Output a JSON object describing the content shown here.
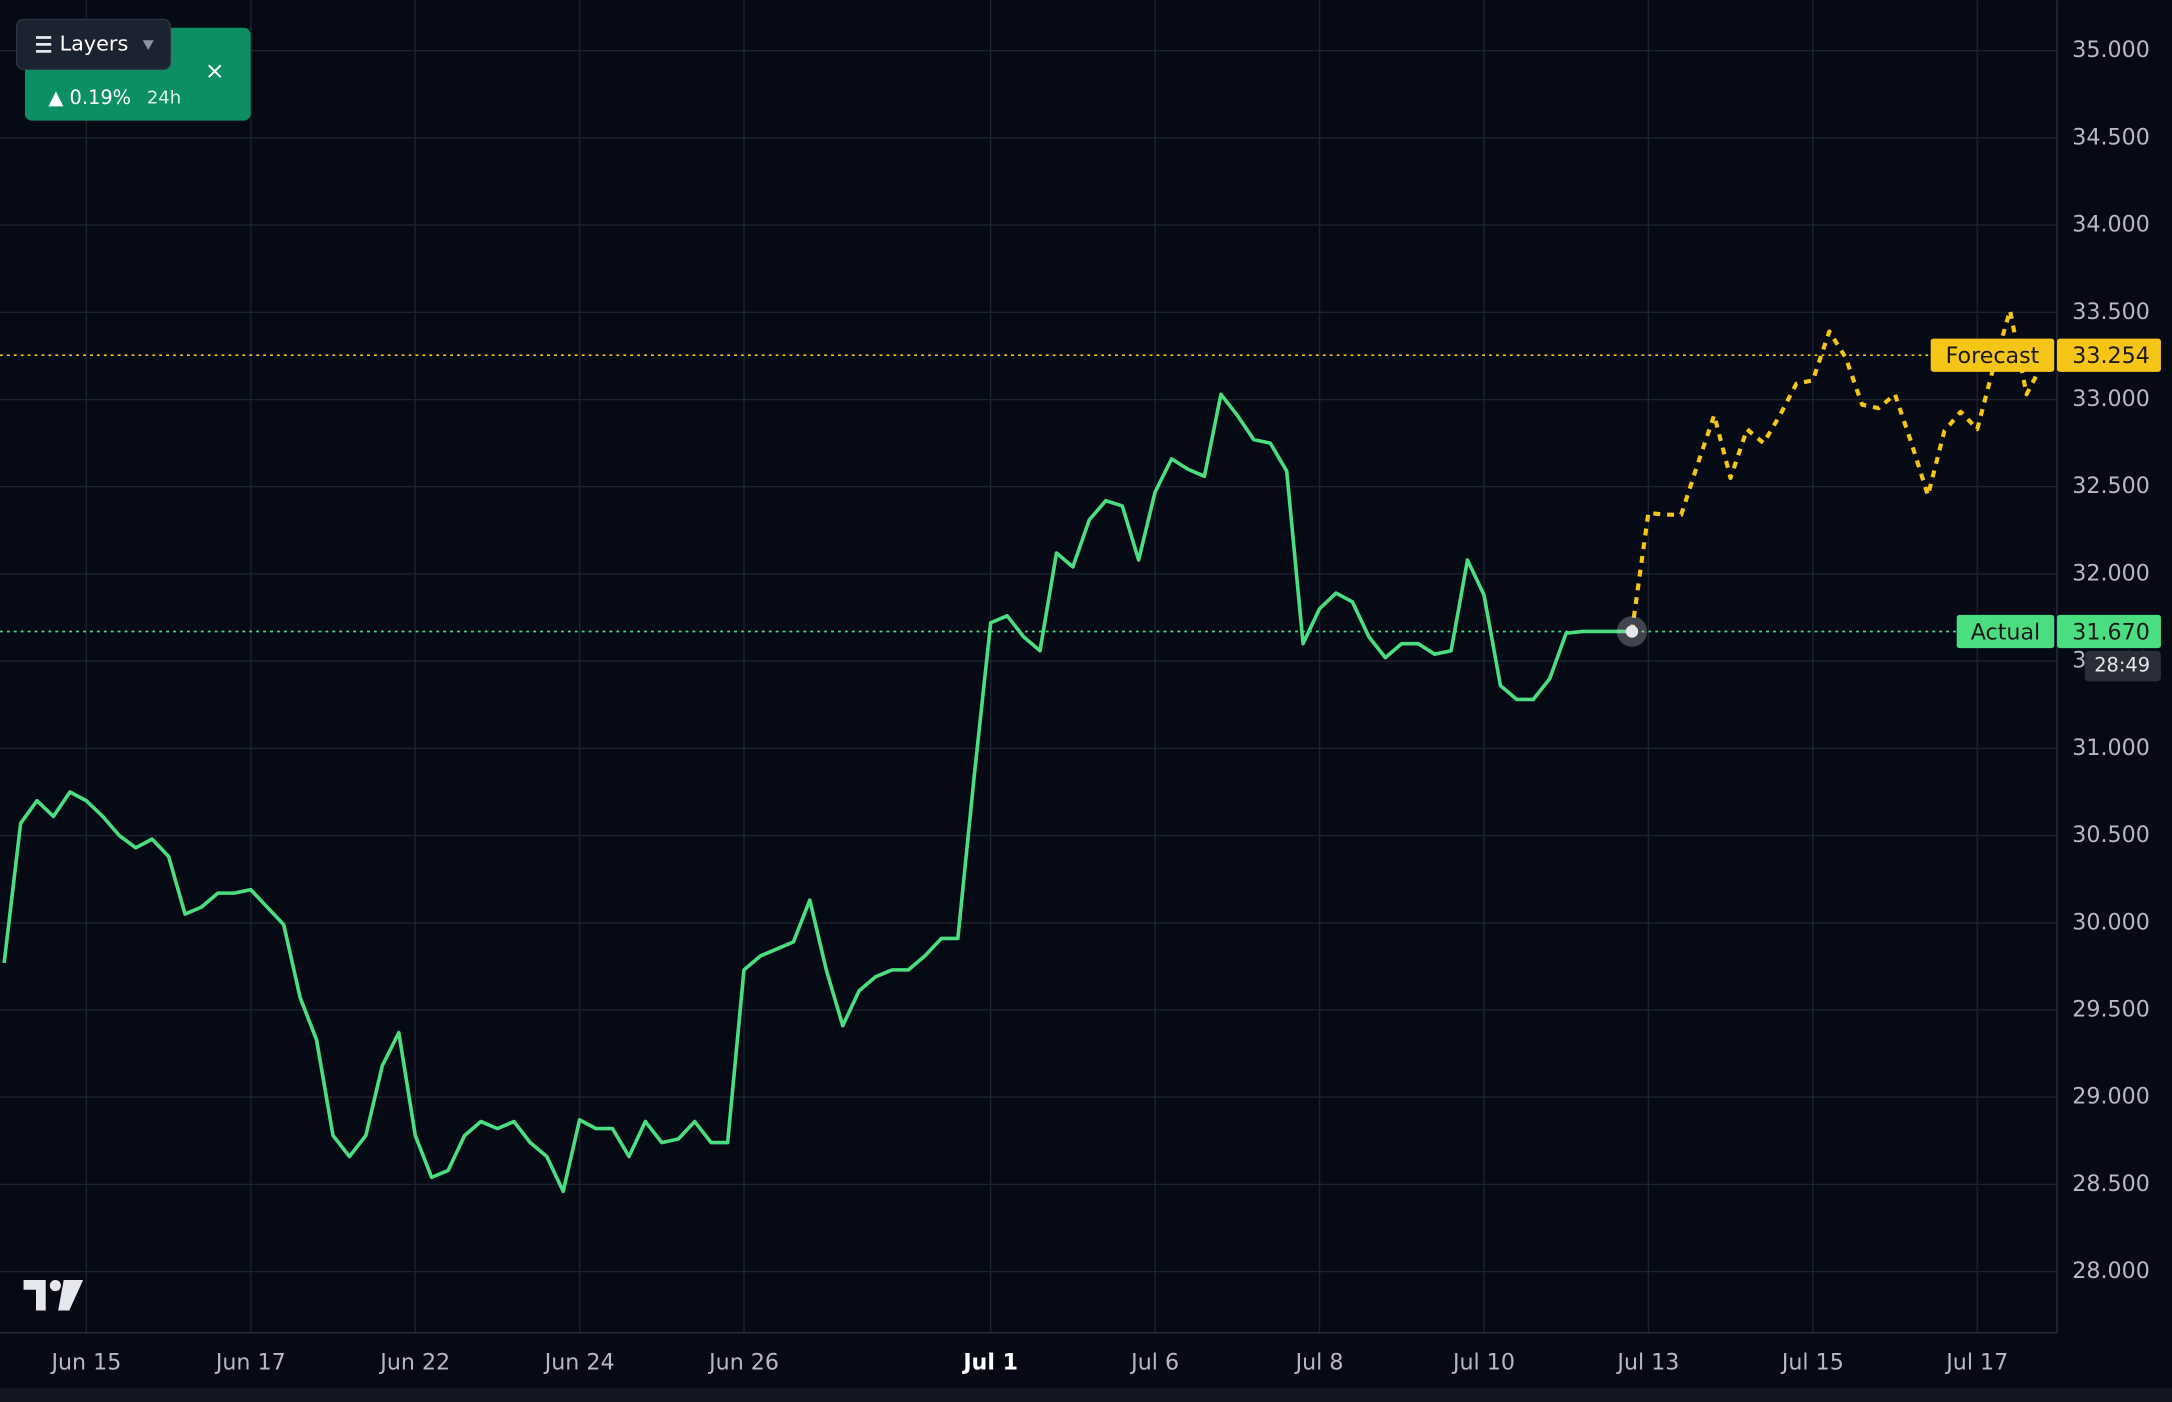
{
  "chart_data": {
    "type": "line",
    "categories": [
      null,
      null,
      null,
      null,
      null,
      "Jun 15",
      null,
      null,
      null,
      null,
      null,
      null,
      null,
      null,
      null,
      "Jun 17",
      null,
      null,
      null,
      null,
      null,
      null,
      null,
      null,
      null,
      "Jun 22",
      null,
      null,
      null,
      null,
      null,
      null,
      null,
      null,
      null,
      "Jun 24",
      null,
      null,
      null,
      null,
      null,
      null,
      null,
      null,
      null,
      "Jun 26",
      null,
      null,
      null,
      null,
      null,
      null,
      null,
      null,
      null,
      null,
      null,
      null,
      null,
      null,
      "Jul 1",
      null,
      null,
      null,
      null,
      null,
      null,
      null,
      null,
      null,
      "Jul 6",
      null,
      null,
      null,
      null,
      null,
      null,
      null,
      null,
      null,
      "Jul 8",
      null,
      null,
      null,
      null,
      null,
      null,
      null,
      null,
      null,
      "Jul 10",
      null,
      null,
      null,
      null,
      null,
      null,
      null,
      null,
      null,
      "Jul 13",
      null,
      null,
      null,
      null,
      null,
      null,
      null,
      null,
      null,
      "Jul 15",
      null,
      null,
      null,
      null,
      null,
      null,
      null,
      null,
      null,
      "Jul 17",
      null,
      null,
      null,
      null
    ],
    "bold_categories": [
      "Jul 1"
    ],
    "series": [
      {
        "name": "Actual",
        "color": "#4ade80",
        "dashed": false,
        "values": [
          29.77,
          30.57,
          30.7,
          30.61,
          30.75,
          30.7,
          30.61,
          30.5,
          30.43,
          30.48,
          30.38,
          30.05,
          30.09,
          30.17,
          30.17,
          30.19,
          30.09,
          29.99,
          29.57,
          29.33,
          28.78,
          28.66,
          28.78,
          29.18,
          29.37,
          28.78,
          28.54,
          28.58,
          28.78,
          28.86,
          28.82,
          28.86,
          28.74,
          28.66,
          28.46,
          28.87,
          28.82,
          28.82,
          28.66,
          28.86,
          28.74,
          28.76,
          28.86,
          28.74,
          28.74,
          29.73,
          29.81,
          29.85,
          29.89,
          30.13,
          29.73,
          29.41,
          29.61,
          29.69,
          29.73,
          29.73,
          29.81,
          29.91,
          29.91,
          30.84,
          31.72,
          31.76,
          31.64,
          31.56,
          32.12,
          32.04,
          32.31,
          32.42,
          32.39,
          32.08,
          32.47,
          32.66,
          32.6,
          32.56,
          33.03,
          32.91,
          32.77,
          32.75,
          32.59,
          31.6,
          31.8,
          31.89,
          31.84,
          31.64,
          31.52,
          31.6,
          31.6,
          31.54,
          31.56,
          32.08,
          31.88,
          31.36,
          31.28,
          31.28,
          31.4,
          31.66,
          31.67,
          31.67,
          31.67,
          31.67,
          null,
          null,
          null,
          null,
          null,
          null,
          null,
          null,
          null,
          null,
          null,
          null,
          null,
          null,
          null,
          null,
          null,
          null,
          null,
          null,
          null,
          null,
          null,
          null,
          null
        ]
      },
      {
        "name": "Forecast",
        "color": "#f5c518",
        "dashed": true,
        "values": [
          null,
          null,
          null,
          null,
          null,
          null,
          null,
          null,
          null,
          null,
          null,
          null,
          null,
          null,
          null,
          null,
          null,
          null,
          null,
          null,
          null,
          null,
          null,
          null,
          null,
          null,
          null,
          null,
          null,
          null,
          null,
          null,
          null,
          null,
          null,
          null,
          null,
          null,
          null,
          null,
          null,
          null,
          null,
          null,
          null,
          null,
          null,
          null,
          null,
          null,
          null,
          null,
          null,
          null,
          null,
          null,
          null,
          null,
          null,
          null,
          null,
          null,
          null,
          null,
          null,
          null,
          null,
          null,
          null,
          null,
          null,
          null,
          null,
          null,
          null,
          null,
          null,
          null,
          null,
          null,
          null,
          null,
          null,
          null,
          null,
          null,
          null,
          null,
          null,
          null,
          null,
          null,
          null,
          null,
          null,
          null,
          null,
          null,
          null,
          31.67,
          32.35,
          32.34,
          32.34,
          32.63,
          32.91,
          32.55,
          32.83,
          32.75,
          32.91,
          33.09,
          33.11,
          33.39,
          33.24,
          32.97,
          32.95,
          33.03,
          32.75,
          32.45,
          32.82,
          32.93,
          32.83,
          33.19,
          33.51,
          33.03,
          33.21
        ]
      }
    ],
    "reference_lines": [
      {
        "name": "Forecast",
        "value": 33.254,
        "color": "#f5c518"
      },
      {
        "name": "Actual",
        "value": 31.67,
        "value_label": "31.670",
        "color": "#4ade80",
        "countdown": "28:49"
      }
    ],
    "ylim": [
      27.65,
      35.29
    ],
    "yticks": [
      {
        "value": 28,
        "label": "28.000"
      },
      {
        "value": 28.5,
        "label": "28.500"
      },
      {
        "value": 29,
        "label": "29.000"
      },
      {
        "value": 29.5,
        "label": "29.500"
      },
      {
        "value": 30,
        "label": "30.000"
      },
      {
        "value": 30.5,
        "label": "30.500"
      },
      {
        "value": 31,
        "label": "31.000"
      },
      {
        "value": 31.5,
        "label": "31.500"
      },
      {
        "value": 32,
        "label": "32.000"
      },
      {
        "value": 32.5,
        "label": "32.500"
      },
      {
        "value": 33,
        "label": "33.000"
      },
      {
        "value": 33.5,
        "label": "33.500"
      },
      {
        "value": 34,
        "label": "34.000"
      },
      {
        "value": 34.5,
        "label": "34.500"
      },
      {
        "value": 35,
        "label": "35.000"
      }
    ],
    "grid": true
  },
  "toolbar": {
    "layers": "Layers",
    "change": "▲ 0.19%",
    "period": "24h",
    "close": "×"
  }
}
